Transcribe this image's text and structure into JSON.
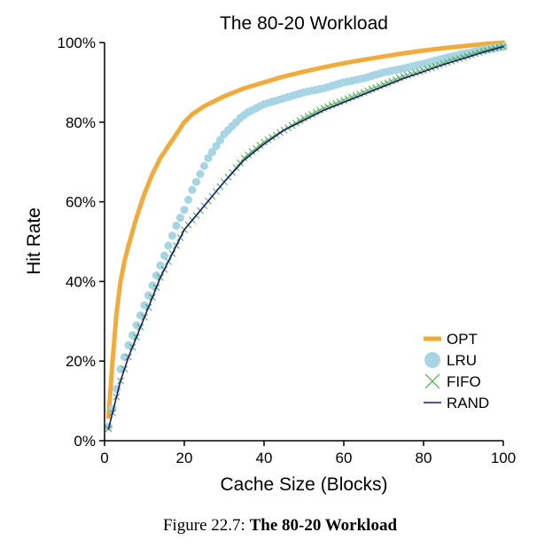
{
  "chart_data": {
    "type": "line",
    "title": "The 80-20 Workload",
    "xlabel": "Cache Size (Blocks)",
    "ylabel": "Hit Rate",
    "xlim": [
      0,
      100
    ],
    "ylim": [
      0,
      100
    ],
    "x_ticks": [
      0,
      20,
      40,
      60,
      80,
      100
    ],
    "x_tick_labels": [
      "0",
      "20",
      "40",
      "60",
      "80",
      "100"
    ],
    "y_ticks": [
      0,
      20,
      40,
      60,
      80,
      100
    ],
    "y_tick_labels": [
      "0%",
      "20%",
      "40%",
      "60%",
      "80%",
      "100%"
    ],
    "legend_position": "bottom-right",
    "series": [
      {
        "name": "OPT",
        "color": "#f0ab3a",
        "style": "thick-line",
        "x": [
          1,
          2,
          3,
          4,
          5,
          6,
          8,
          10,
          12,
          14,
          16,
          18,
          20,
          22,
          25,
          30,
          35,
          40,
          45,
          50,
          55,
          60,
          65,
          70,
          75,
          80,
          85,
          90,
          95,
          100
        ],
        "y": [
          6,
          20,
          32,
          40,
          45,
          49,
          56,
          62,
          67,
          71,
          74,
          77,
          80,
          82,
          84,
          86.5,
          88.5,
          90,
          91.5,
          92.7,
          93.8,
          94.8,
          95.7,
          96.5,
          97.3,
          98,
          98.6,
          99.1,
          99.6,
          100
        ]
      },
      {
        "name": "LRU",
        "color": "#a8d5e4",
        "style": "circles",
        "x": [
          1,
          2,
          3,
          4,
          5,
          6,
          8,
          10,
          12,
          14,
          16,
          18,
          20,
          22,
          24,
          26,
          28,
          30,
          32,
          34,
          36,
          38,
          40,
          45,
          50,
          55,
          60,
          65,
          70,
          75,
          80,
          85,
          90,
          95,
          100
        ],
        "y": [
          3.5,
          8,
          13,
          18,
          21,
          24,
          29,
          34,
          39,
          44,
          49,
          54,
          58,
          63,
          67,
          71,
          74,
          77,
          79,
          81,
          82.5,
          83.5,
          84.5,
          86,
          87.5,
          88.5,
          90,
          91,
          92.5,
          93.5,
          94.7,
          96,
          97.2,
          98.2,
          99
        ]
      },
      {
        "name": "FIFO",
        "color": "#47a84a",
        "style": "crosses",
        "x": [
          1,
          2,
          3,
          4,
          5,
          6,
          8,
          10,
          12,
          14,
          16,
          18,
          20,
          25,
          30,
          35,
          40,
          45,
          50,
          55,
          60,
          65,
          70,
          75,
          80,
          85,
          90,
          95,
          100
        ],
        "y": [
          3,
          7,
          11,
          15,
          18,
          21,
          26,
          31,
          36,
          41,
          45,
          49,
          53,
          59,
          65,
          71,
          75,
          78,
          81,
          83.5,
          85.5,
          87.5,
          89.5,
          91.5,
          93,
          94.7,
          96.3,
          97.8,
          99
        ]
      },
      {
        "name": "RAND",
        "color": "#1a1a6e",
        "style": "thin-line",
        "x": [
          1,
          2,
          3,
          4,
          5,
          6,
          8,
          10,
          12,
          14,
          16,
          18,
          20,
          25,
          30,
          35,
          40,
          45,
          50,
          55,
          60,
          65,
          70,
          75,
          80,
          85,
          90,
          95,
          100
        ],
        "y": [
          3,
          7,
          11,
          15,
          18,
          21,
          26,
          31,
          36,
          41,
          45,
          49,
          53,
          59,
          65,
          70.5,
          74.5,
          78,
          80.5,
          83,
          85,
          87,
          89,
          91,
          92.7,
          94.5,
          96,
          97.6,
          99
        ]
      }
    ]
  },
  "caption": {
    "prefix": "Figure 22.7:",
    "title": "The 80-20 Workload"
  }
}
